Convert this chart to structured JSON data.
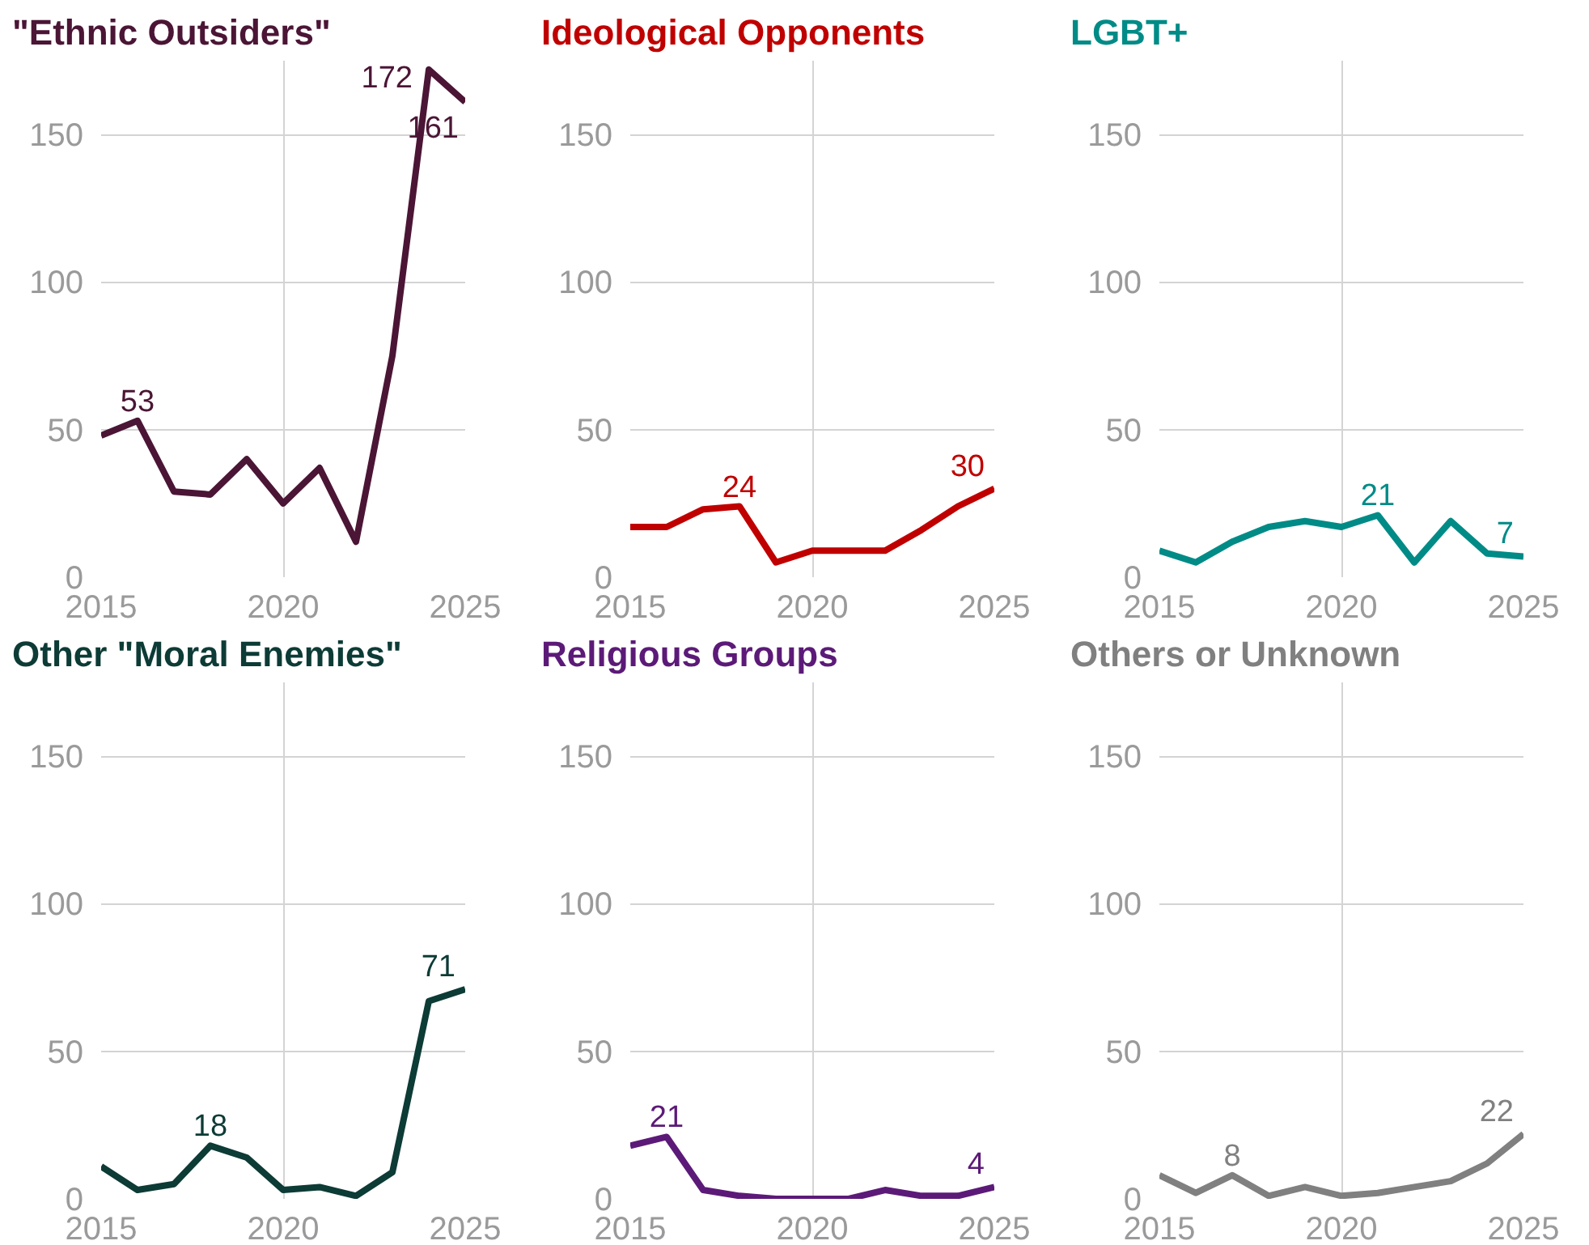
{
  "chart_data": [
    {
      "type": "line",
      "title": "\"Ethnic Outsiders\"",
      "x": [
        2015,
        2016,
        2017,
        2018,
        2019,
        2020,
        2021,
        2022,
        2023,
        2024,
        2025
      ],
      "xlim": [
        2015,
        2025
      ],
      "xticks": [
        2015,
        2020,
        2025
      ],
      "ylim": [
        0,
        175
      ],
      "yticks": [
        0,
        50,
        100,
        150
      ],
      "grid": true,
      "series": [
        {
          "color": "#4b1535",
          "values": [
            48,
            53,
            29,
            28,
            40,
            25,
            37,
            12,
            75,
            172,
            161
          ],
          "value_labels": [
            null,
            "53",
            null,
            null,
            null,
            null,
            null,
            null,
            null,
            "172",
            "161"
          ]
        }
      ]
    },
    {
      "type": "line",
      "title": "Ideological Opponents",
      "x": [
        2015,
        2016,
        2017,
        2018,
        2019,
        2020,
        2021,
        2022,
        2023,
        2024,
        2025
      ],
      "xlim": [
        2015,
        2025
      ],
      "xticks": [
        2015,
        2020,
        2025
      ],
      "ylim": [
        0,
        175
      ],
      "yticks": [
        0,
        50,
        100,
        150
      ],
      "grid": true,
      "series": [
        {
          "color": "#c00000",
          "values": [
            17,
            17,
            23,
            24,
            5,
            9,
            9,
            9,
            16,
            24,
            30
          ],
          "value_labels": [
            null,
            null,
            null,
            "24",
            null,
            null,
            null,
            null,
            null,
            null,
            "30"
          ]
        }
      ]
    },
    {
      "type": "line",
      "title": "LGBT+",
      "x": [
        2015,
        2016,
        2017,
        2018,
        2019,
        2020,
        2021,
        2022,
        2023,
        2024,
        2025
      ],
      "xlim": [
        2015,
        2025
      ],
      "xticks": [
        2015,
        2020,
        2025
      ],
      "ylim": [
        0,
        175
      ],
      "yticks": [
        0,
        50,
        100,
        150
      ],
      "grid": true,
      "series": [
        {
          "color": "#008b87",
          "values": [
            9,
            5,
            12,
            17,
            19,
            17,
            21,
            5,
            19,
            8,
            7
          ],
          "value_labels": [
            null,
            null,
            null,
            null,
            null,
            null,
            "21",
            null,
            null,
            null,
            "7"
          ]
        }
      ]
    },
    {
      "type": "line",
      "title": "Other \"Moral Enemies\"",
      "x": [
        2015,
        2016,
        2017,
        2018,
        2019,
        2020,
        2021,
        2022,
        2023,
        2024,
        2025
      ],
      "xlim": [
        2015,
        2025
      ],
      "xticks": [
        2015,
        2020,
        2025
      ],
      "ylim": [
        0,
        175
      ],
      "yticks": [
        0,
        50,
        100,
        150
      ],
      "grid": true,
      "series": [
        {
          "color": "#0d3b36",
          "values": [
            11,
            3,
            5,
            18,
            14,
            3,
            4,
            1,
            9,
            67,
            71
          ],
          "value_labels": [
            null,
            null,
            null,
            "18",
            null,
            null,
            null,
            null,
            null,
            null,
            "71"
          ]
        }
      ]
    },
    {
      "type": "line",
      "title": "Religious Groups",
      "x": [
        2015,
        2016,
        2017,
        2018,
        2019,
        2020,
        2021,
        2022,
        2023,
        2024,
        2025
      ],
      "xlim": [
        2015,
        2025
      ],
      "xticks": [
        2015,
        2020,
        2025
      ],
      "ylim": [
        0,
        175
      ],
      "yticks": [
        0,
        50,
        100,
        150
      ],
      "grid": true,
      "series": [
        {
          "color": "#5c1a78",
          "values": [
            18,
            21,
            3,
            1,
            0,
            0,
            0,
            3,
            1,
            1,
            4
          ],
          "value_labels": [
            null,
            "21",
            null,
            null,
            null,
            null,
            null,
            null,
            null,
            null,
            "4"
          ]
        }
      ]
    },
    {
      "type": "line",
      "title": "Others or Unknown",
      "x": [
        2015,
        2016,
        2017,
        2018,
        2019,
        2020,
        2021,
        2022,
        2023,
        2024,
        2025
      ],
      "xlim": [
        2015,
        2025
      ],
      "xticks": [
        2015,
        2020,
        2025
      ],
      "ylim": [
        0,
        175
      ],
      "yticks": [
        0,
        50,
        100,
        150
      ],
      "grid": true,
      "series": [
        {
          "color": "#808080",
          "values": [
            8,
            2,
            8,
            1,
            4,
            1,
            2,
            4,
            6,
            12,
            22
          ],
          "value_labels": [
            null,
            null,
            "8",
            null,
            null,
            null,
            null,
            null,
            null,
            null,
            "22"
          ]
        }
      ]
    }
  ]
}
